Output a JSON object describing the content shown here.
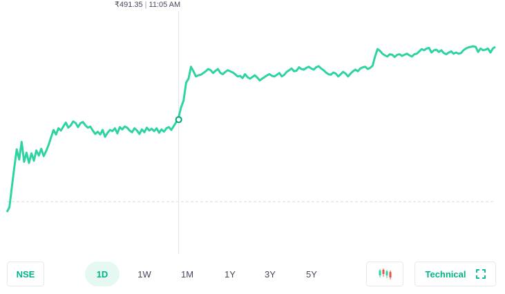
{
  "tooltip": {
    "price": "₹491.35",
    "time": "11:05 AM"
  },
  "chart_data": {
    "type": "line",
    "ylim": [
      470,
      510
    ],
    "baseline": 477,
    "colors": {
      "line": "#2ed3a2",
      "baseline": "#d9dce1",
      "crosshair": "#dfe2e6"
    },
    "values": [
      475.2,
      476.0,
      479.5,
      483.0,
      486.2,
      484.4,
      487.5,
      484.0,
      485.6,
      483.8,
      485.5,
      484.2,
      486.0,
      485.1,
      486.3,
      485.0,
      485.9,
      487.0,
      488.3,
      489.6,
      488.8,
      489.9,
      489.5,
      490.2,
      490.9,
      490.0,
      490.4,
      491.1,
      490.8,
      490.1,
      490.8,
      491.0,
      490.4,
      490.0,
      490.2,
      489.5,
      488.9,
      489.3,
      488.8,
      489.6,
      488.4,
      489.1,
      489.6,
      489.4,
      489.9,
      489.0,
      490.1,
      489.7,
      490.2,
      490.0,
      489.5,
      489.2,
      489.9,
      489.5,
      488.9,
      489.7,
      489.2,
      490.0,
      489.5,
      489.8,
      489.4,
      489.9,
      489.1,
      489.7,
      489.3,
      489.9,
      490.1,
      489.6,
      490.3,
      491.0,
      491.9,
      493.6,
      494.8,
      497.9,
      498.6,
      500.7,
      499.9,
      499.0,
      499.2,
      499.3,
      499.6,
      499.9,
      500.3,
      500.1,
      499.6,
      500.0,
      500.3,
      499.6,
      499.4,
      499.8,
      500.1,
      499.9,
      499.7,
      499.4,
      499.0,
      499.1,
      498.7,
      499.4,
      498.9,
      498.6,
      498.9,
      499.2,
      498.8,
      498.3,
      498.6,
      498.9,
      499.2,
      499.4,
      499.1,
      499.0,
      499.3,
      499.6,
      499.0,
      499.3,
      499.8,
      500.1,
      500.4,
      499.9,
      500.0,
      500.6,
      500.3,
      500.2,
      500.5,
      500.7,
      500.4,
      500.2,
      500.6,
      500.8,
      500.4,
      500.1,
      499.7,
      499.4,
      499.3,
      499.7,
      499.5,
      499.0,
      499.4,
      499.8,
      499.5,
      499.0,
      499.5,
      499.9,
      500.2,
      499.9,
      500.4,
      500.6,
      500.7,
      500.3,
      500.5,
      500.9,
      502.5,
      503.8,
      503.5,
      503.0,
      502.7,
      502.5,
      502.9,
      502.8,
      502.4,
      502.8,
      502.9,
      502.6,
      502.8,
      503.0,
      502.7,
      502.5,
      502.9,
      503.0,
      503.4,
      503.8,
      503.6,
      503.9,
      504.0,
      503.2,
      503.6,
      503.7,
      503.3,
      503.6,
      503.1,
      502.9,
      503.2,
      503.4,
      503.0,
      503.2,
      503.0,
      503.1,
      503.6,
      503.9,
      504.1,
      504.2,
      504.3,
      504.2,
      503.3,
      503.9,
      503.6,
      503.7,
      503.9,
      503.2,
      503.9,
      504.2
    ],
    "x_ticks": [],
    "y_ticks": []
  },
  "controls": {
    "exchange": "NSE",
    "ranges": [
      {
        "label": "1D",
        "active": true
      },
      {
        "label": "1W",
        "active": false
      },
      {
        "label": "1M",
        "active": false
      },
      {
        "label": "1Y",
        "active": false
      },
      {
        "label": "3Y",
        "active": false
      },
      {
        "label": "5Y",
        "active": false
      }
    ],
    "candle_icon": "candlestick-icon",
    "technical": "Technical",
    "expand_icon": "expand-icon"
  }
}
